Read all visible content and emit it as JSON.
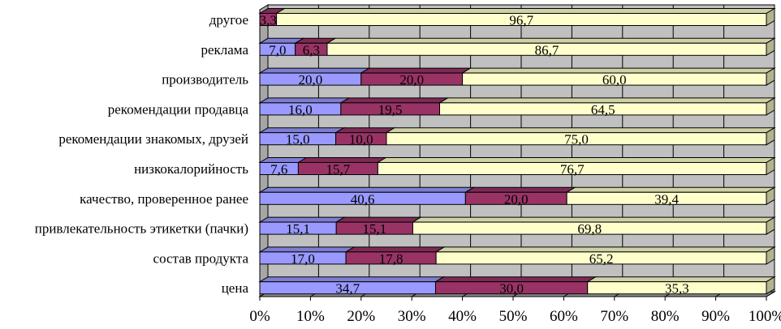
{
  "chart_data": {
    "type": "bar",
    "stacked": true,
    "normalized_percent": true,
    "orientation": "horizontal",
    "categories": [
      "другое",
      "реклама",
      "производитель",
      "рекомендации продавца",
      "рекомендации знакомых, друзей",
      "низкокалорийность",
      "качество, проверенное ранее",
      "привлекательность этикетки (пачки)",
      "состав продукта",
      "цена"
    ],
    "series": [
      {
        "name": "series-1",
        "color": "#9999ff",
        "values": [
          0,
          7.0,
          20.0,
          16.0,
          15.0,
          7.6,
          40.6,
          15.1,
          17.0,
          34.7
        ],
        "labels": [
          "",
          "7,0",
          "20,0",
          "16,0",
          "15,0",
          "7,6",
          "40,6",
          "15,1",
          "17,0",
          "34,7"
        ]
      },
      {
        "name": "series-2",
        "color": "#993366",
        "values": [
          3.3,
          6.3,
          20.0,
          19.5,
          10.0,
          15.7,
          20.0,
          15.1,
          17.8,
          30.0
        ],
        "labels": [
          "3,3",
          "6,3",
          "20,0",
          "19,5",
          "10,0",
          "15,7",
          "20,0",
          "15,1",
          "17,8",
          "30,0"
        ]
      },
      {
        "name": "series-3",
        "color": "#ffffcc",
        "values": [
          96.7,
          86.7,
          60.0,
          64.5,
          75.0,
          76.7,
          39.4,
          69.8,
          65.2,
          35.3
        ],
        "labels": [
          "96,7",
          "86,7",
          "60,0",
          "64,5",
          "75,0",
          "76,7",
          "39,4",
          "69,8",
          "65,2",
          "35,3"
        ]
      }
    ],
    "x_ticks": [
      "0%",
      "10%",
      "20%",
      "30%",
      "40%",
      "50%",
      "60%",
      "70%",
      "80%",
      "90%",
      "100%"
    ],
    "xlim": [
      0,
      100
    ],
    "grid": true,
    "plot_background": "#c0c0c0",
    "title": "",
    "xlabel": "",
    "ylabel": ""
  }
}
